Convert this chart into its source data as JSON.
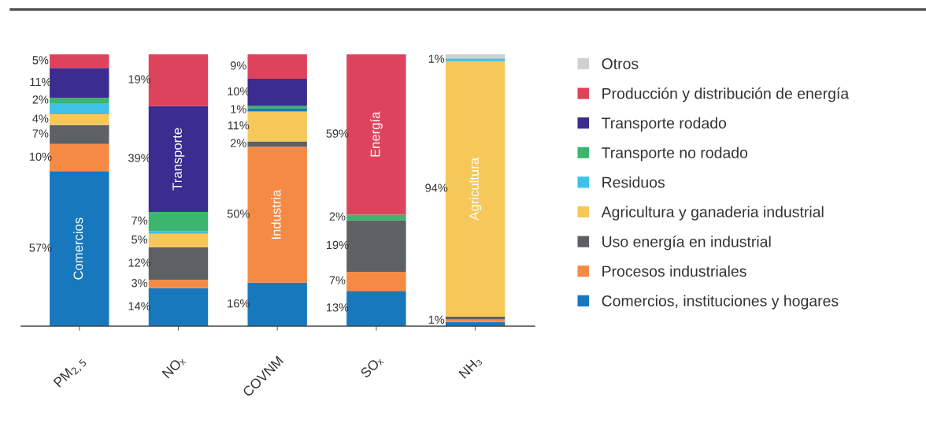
{
  "chart_data": {
    "type": "bar",
    "stacked": true,
    "categories": [
      "PM$_{2,5}$",
      "NOₓ",
      "COVNM",
      "SOₓ",
      "NH₃"
    ],
    "tick_labels": "x",
    "legend": "right",
    "series": [
      {
        "name": "Comercios, instituciones y hogares",
        "color": "#1878be",
        "values": [
          57,
          14,
          16,
          13,
          1.5
        ],
        "value_labels": [
          "57%",
          "14%",
          "16%",
          "13%",
          null
        ]
      },
      {
        "name": "Procesos industriales",
        "color": "#f58a45",
        "values": [
          10,
          3,
          50,
          7,
          1
        ],
        "value_labels": [
          "10%",
          "3%",
          "50%",
          "7%",
          "1%"
        ]
      },
      {
        "name": "Uso energía en industrial",
        "color": "#5d6163",
        "values": [
          7,
          12,
          2,
          19,
          1
        ],
        "value_labels": [
          "7%",
          "12%",
          "2%",
          "19%",
          null
        ]
      },
      {
        "name": "Agricultura y ganaderia industrial",
        "color": "#f6c85a",
        "values": [
          4,
          5,
          11,
          null,
          94
        ],
        "value_labels": [
          "4%",
          "5%",
          "11%",
          null,
          "94%"
        ]
      },
      {
        "name": "Residuos",
        "color": "#3fc1e8",
        "colors": [
          "#3fc1e8",
          "#3fc1e8",
          "#1878be",
          "#3fc1e8",
          "#3fc1e8"
        ],
        "values": [
          4,
          1,
          1,
          null,
          1
        ],
        "value_labels": [
          null,
          null,
          "1%",
          null,
          "1%"
        ]
      },
      {
        "name": "Transporte no rodado",
        "color": "#3cb56f",
        "values": [
          2,
          7,
          1,
          2,
          null
        ],
        "value_labels": [
          "2%",
          "7%",
          null,
          "2%",
          null
        ]
      },
      {
        "name": "Transporte rodado",
        "color": "#3b2d8f",
        "values": [
          11,
          39,
          10,
          null,
          null
        ],
        "value_labels": [
          "11%",
          "39%",
          "10%",
          null,
          null
        ]
      },
      {
        "name": "Producción y distribución de energía",
        "color": "#de435d",
        "values": [
          5,
          19,
          9,
          59,
          null
        ],
        "value_labels": [
          "5%",
          "19%",
          "9%",
          "59%",
          null
        ]
      },
      {
        "name": "Otros",
        "color": "#d0d0d0",
        "values": [
          null,
          null,
          null,
          null,
          1.5
        ]
      }
    ],
    "annotations": [
      "Comercios",
      "Transporte",
      "Industria",
      "Energía",
      "Agricultura"
    ]
  }
}
